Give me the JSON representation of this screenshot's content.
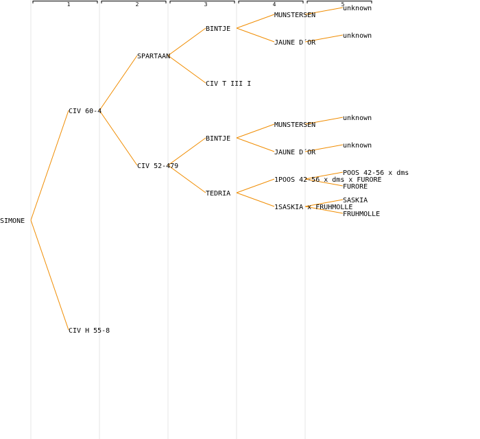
{
  "generations": [
    "1",
    "2",
    "3",
    "4",
    "5"
  ],
  "colors": {
    "edge": "#f08c00",
    "separator": "#e6e6e6",
    "text": "#000000"
  },
  "tree": {
    "name": "SIMONE",
    "children": [
      {
        "name": "CIV 60-4",
        "children": [
          {
            "name": "SPARTAAN",
            "children": [
              {
                "name": "BINTJE",
                "children": [
                  {
                    "name": "MUNSTERSEN",
                    "children": [
                      {
                        "name": "unknown"
                      }
                    ]
                  },
                  {
                    "name": "JAUNE D´OR",
                    "children": [
                      {
                        "name": "unknown"
                      }
                    ]
                  }
                ]
              },
              {
                "name": "CIV T III I"
              }
            ]
          },
          {
            "name": "CIV 52-479",
            "children": [
              {
                "name": "BINTJE",
                "children": [
                  {
                    "name": "MUNSTERSEN",
                    "children": [
                      {
                        "name": "unknown"
                      }
                    ]
                  },
                  {
                    "name": "JAUNE D´OR",
                    "children": [
                      {
                        "name": "unknown"
                      }
                    ]
                  }
                ]
              },
              {
                "name": "TEDRIA",
                "children": [
                  {
                    "name": "1POOS 42-56 x dms x FURORE",
                    "children": [
                      {
                        "name": "POOS 42-56 x dms"
                      },
                      {
                        "name": "FURORE"
                      }
                    ]
                  },
                  {
                    "name": "1SASKIA x FRUHMOLLE",
                    "children": [
                      {
                        "name": "SASKIA"
                      },
                      {
                        "name": "FRUHMOLLE"
                      }
                    ]
                  }
                ]
              }
            ]
          }
        ]
      },
      {
        "name": "CIV H 55-8"
      }
    ]
  }
}
